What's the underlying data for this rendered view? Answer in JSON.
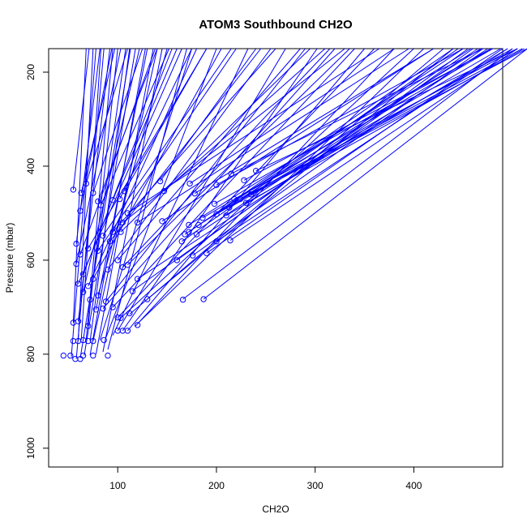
{
  "chart_data": {
    "type": "scatter",
    "title": "ATOM3 Southbound CH2O",
    "xlabel": "CH2O",
    "ylabel": "Pressure (mbar)",
    "xlim": [
      30,
      490
    ],
    "ylim": [
      1040,
      150
    ],
    "y_reversed": true,
    "xticks": [
      100,
      200,
      300,
      400
    ],
    "yticks": [
      200,
      400,
      600,
      800,
      1000
    ],
    "grid": false,
    "legend": "none",
    "color": "#0000ff",
    "points": [
      [
        45,
        803
      ],
      [
        52,
        803
      ],
      [
        57,
        810
      ],
      [
        62,
        810
      ],
      [
        65,
        803
      ],
      [
        75,
        803
      ],
      [
        90,
        803
      ],
      [
        55,
        772
      ],
      [
        60,
        772
      ],
      [
        65,
        770
      ],
      [
        70,
        772
      ],
      [
        75,
        772
      ],
      [
        86,
        770
      ],
      [
        100,
        750
      ],
      [
        105,
        750
      ],
      [
        110,
        750
      ],
      [
        120,
        738
      ],
      [
        112,
        713
      ],
      [
        95,
        700
      ],
      [
        88,
        688
      ],
      [
        100,
        722
      ],
      [
        103,
        723
      ],
      [
        85,
        703
      ],
      [
        130,
        683
      ],
      [
        115,
        666
      ],
      [
        120,
        640
      ],
      [
        166,
        684
      ],
      [
        187,
        683
      ],
      [
        160,
        600
      ],
      [
        172,
        540
      ],
      [
        176,
        590
      ],
      [
        180,
        545
      ],
      [
        190,
        585
      ],
      [
        200,
        560
      ],
      [
        214,
        558
      ],
      [
        55,
        733
      ],
      [
        60,
        730
      ],
      [
        70,
        740
      ],
      [
        78,
        705
      ],
      [
        72,
        684
      ],
      [
        80,
        675
      ],
      [
        65,
        668
      ],
      [
        70,
        655
      ],
      [
        60,
        650
      ],
      [
        75,
        640
      ],
      [
        65,
        630
      ],
      [
        90,
        620
      ],
      [
        100,
        600
      ],
      [
        105,
        615
      ],
      [
        110,
        610
      ],
      [
        58,
        608
      ],
      [
        62,
        588
      ],
      [
        70,
        575
      ],
      [
        80,
        580
      ],
      [
        92,
        560
      ],
      [
        95,
        540
      ],
      [
        85,
        548
      ],
      [
        103,
        540
      ],
      [
        105,
        520
      ],
      [
        110,
        500
      ],
      [
        120,
        520
      ],
      [
        145,
        517
      ],
      [
        165,
        560
      ],
      [
        168,
        545
      ],
      [
        172,
        525
      ],
      [
        182,
        525
      ],
      [
        186,
        510
      ],
      [
        200,
        502
      ],
      [
        210,
        505
      ],
      [
        198,
        480
      ],
      [
        213,
        488
      ],
      [
        218,
        470
      ],
      [
        224,
        470
      ],
      [
        230,
        478
      ],
      [
        235,
        460
      ],
      [
        228,
        430
      ],
      [
        240,
        410
      ],
      [
        215,
        416
      ],
      [
        200,
        440
      ],
      [
        178,
        458
      ],
      [
        173,
        437
      ],
      [
        147,
        453
      ],
      [
        143,
        432
      ],
      [
        107,
        453
      ],
      [
        102,
        470
      ],
      [
        95,
        472
      ],
      [
        80,
        475
      ],
      [
        83,
        483
      ],
      [
        75,
        457
      ],
      [
        68,
        437
      ],
      [
        63,
        457
      ],
      [
        62,
        495
      ],
      [
        58,
        565
      ],
      [
        55,
        450
      ]
    ],
    "segments": [
      [
        53,
        805,
        78,
        150
      ],
      [
        58,
        810,
        86,
        150
      ],
      [
        62,
        808,
        113,
        150
      ],
      [
        66,
        803,
        118,
        150
      ],
      [
        72,
        802,
        128,
        150
      ],
      [
        78,
        800,
        136,
        150
      ],
      [
        85,
        795,
        145,
        150
      ],
      [
        90,
        790,
        170,
        150
      ],
      [
        60,
        772,
        75,
        150
      ],
      [
        63,
        770,
        83,
        150
      ],
      [
        68,
        770,
        95,
        150
      ],
      [
        72,
        772,
        112,
        150
      ],
      [
        75,
        772,
        140,
        150
      ],
      [
        82,
        770,
        175,
        150
      ],
      [
        88,
        765,
        200,
        150
      ],
      [
        95,
        760,
        232,
        150
      ],
      [
        100,
        750,
        270,
        150
      ],
      [
        105,
        750,
        302,
        150
      ],
      [
        110,
        750,
        350,
        150
      ],
      [
        118,
        740,
        380,
        150
      ],
      [
        120,
        735,
        410,
        150
      ],
      [
        112,
        715,
        430,
        150
      ],
      [
        100,
        722,
        360,
        150
      ],
      [
        103,
        723,
        400,
        150
      ],
      [
        95,
        700,
        340,
        150
      ],
      [
        88,
        688,
        290,
        150
      ],
      [
        85,
        703,
        320,
        150
      ],
      [
        130,
        683,
        440,
        150
      ],
      [
        115,
        665,
        460,
        150
      ],
      [
        120,
        640,
        475,
        150
      ],
      [
        166,
        683,
        500,
        150
      ],
      [
        187,
        683,
        515,
        150
      ],
      [
        160,
        600,
        455,
        150
      ],
      [
        172,
        540,
        440,
        150
      ],
      [
        176,
        590,
        470,
        150
      ],
      [
        180,
        545,
        465,
        150
      ],
      [
        190,
        585,
        490,
        150
      ],
      [
        200,
        560,
        495,
        150
      ],
      [
        214,
        558,
        505,
        150
      ],
      [
        55,
        733,
        68,
        150
      ],
      [
        60,
        730,
        92,
        150
      ],
      [
        70,
        740,
        100,
        150
      ],
      [
        78,
        705,
        130,
        150
      ],
      [
        72,
        684,
        108,
        150
      ],
      [
        80,
        675,
        150,
        150
      ],
      [
        65,
        668,
        122,
        150
      ],
      [
        70,
        655,
        180,
        150
      ],
      [
        60,
        650,
        165,
        150
      ],
      [
        75,
        640,
        205,
        150
      ],
      [
        65,
        630,
        155,
        150
      ],
      [
        90,
        620,
        255,
        150
      ],
      [
        100,
        600,
        285,
        150
      ],
      [
        105,
        615,
        315,
        150
      ],
      [
        110,
        610,
        335,
        150
      ],
      [
        58,
        608,
        103,
        150
      ],
      [
        62,
        588,
        138,
        150
      ],
      [
        70,
        575,
        190,
        150
      ],
      [
        80,
        580,
        220,
        150
      ],
      [
        92,
        560,
        245,
        150
      ],
      [
        95,
        540,
        260,
        150
      ],
      [
        85,
        548,
        215,
        150
      ],
      [
        103,
        540,
        295,
        150
      ],
      [
        105,
        520,
        330,
        150
      ],
      [
        110,
        500,
        365,
        150
      ],
      [
        120,
        520,
        395,
        150
      ],
      [
        145,
        517,
        420,
        150
      ],
      [
        165,
        560,
        445,
        150
      ],
      [
        168,
        545,
        450,
        150
      ],
      [
        172,
        525,
        458,
        150
      ],
      [
        182,
        525,
        468,
        150
      ],
      [
        186,
        510,
        480,
        150
      ],
      [
        200,
        502,
        488,
        150
      ],
      [
        210,
        505,
        495,
        150
      ],
      [
        198,
        480,
        478,
        150
      ],
      [
        213,
        488,
        500,
        150
      ],
      [
        218,
        470,
        505,
        150
      ],
      [
        224,
        470,
        510,
        150
      ],
      [
        230,
        478,
        512,
        150
      ],
      [
        235,
        460,
        515,
        150
      ],
      [
        228,
        430,
        480,
        150
      ],
      [
        240,
        410,
        505,
        150
      ],
      [
        215,
        416,
        470,
        150
      ],
      [
        200,
        440,
        450,
        150
      ],
      [
        178,
        458,
        420,
        150
      ],
      [
        173,
        437,
        380,
        150
      ],
      [
        147,
        453,
        310,
        150
      ],
      [
        143,
        432,
        240,
        150
      ],
      [
        107,
        453,
        190,
        150
      ],
      [
        102,
        470,
        175,
        150
      ],
      [
        95,
        472,
        160,
        150
      ],
      [
        80,
        475,
        140,
        150
      ],
      [
        83,
        483,
        152,
        150
      ],
      [
        75,
        457,
        125,
        150
      ],
      [
        68,
        437,
        110,
        150
      ],
      [
        63,
        457,
        97,
        150
      ],
      [
        62,
        495,
        94,
        150
      ],
      [
        58,
        565,
        82,
        150
      ],
      [
        55,
        450,
        71,
        150
      ]
    ]
  }
}
